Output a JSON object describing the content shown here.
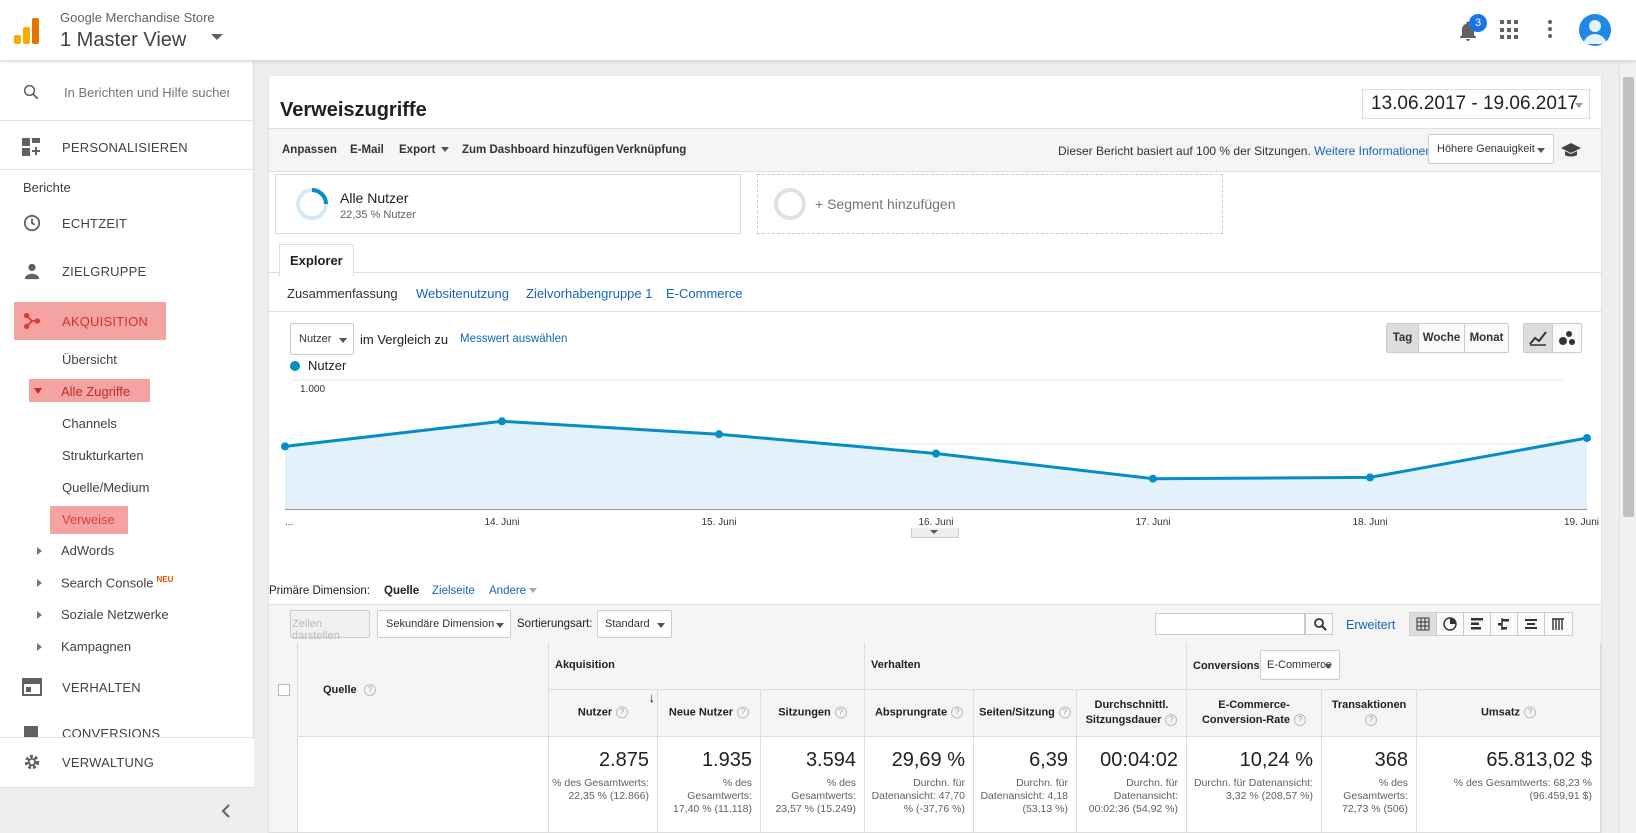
{
  "header": {
    "account": "Google Merchandise Store",
    "view": "1 Master View",
    "notification_count": "3"
  },
  "sidebar": {
    "search_placeholder": "In Berichten und Hilfe suchen",
    "personalisieren": "PERSONALISIEREN",
    "berichte": "Berichte",
    "echtzeit": "ECHTZEIT",
    "zielgruppe": "ZIELGRUPPE",
    "akquisition": "AKQUISITION",
    "uebersicht": "Übersicht",
    "alle_zugriffe": "Alle Zugriffe",
    "channels": "Channels",
    "strukturkarten": "Strukturkarten",
    "quelle_medium": "Quelle/Medium",
    "verweise": "Verweise",
    "adwords": "AdWords",
    "search_console": "Search Console",
    "neu_badge": "NEU",
    "soziale_netzwerke": "Soziale Netzwerke",
    "kampagnen": "Kampagnen",
    "verhalten": "VERHALTEN",
    "conversions": "CONVERSIONS",
    "verwaltung": "VERWALTUNG"
  },
  "report": {
    "title": "Verweiszugriffe",
    "date_range": "13.06.2017 - 19.06.2017",
    "toolbar": {
      "anpassen": "Anpassen",
      "email": "E-Mail",
      "export": "Export",
      "dashboard": "Zum Dashboard hinzufügen",
      "verknuepfung": "Verknüpfung",
      "note": "Dieser Bericht basiert auf 100 % der Sitzungen.",
      "more_info": "Weitere Informationen",
      "precision": "Höhere Genauigkeit"
    },
    "segment": {
      "name": "Alle Nutzer",
      "share": "22,35 % Nutzer",
      "add": "+ Segment hinzufügen"
    },
    "tab": "Explorer",
    "subtabs": [
      "Zusammenfassung",
      "Websitenutzung",
      "Zielvorhabengruppe 1",
      "E-Commerce"
    ],
    "metric_select": "Nutzer",
    "compare_text": "im Vergleich zu",
    "metric_link": "Messwert auswählen",
    "period_buttons": [
      "Tag",
      "Woche",
      "Monat"
    ],
    "primary_dimension_label": "Primäre Dimension:",
    "dimensions": [
      "Quelle",
      "Zielseite",
      "Andere"
    ],
    "zeilen_btn": "Zeilen darstellen",
    "secondary_dim": "Sekundäre Dimension",
    "sort_label": "Sortierungsart:",
    "sort_value": "Standard",
    "erweitert": "Erweitert"
  },
  "chart_data": {
    "type": "area",
    "legend": "Nutzer",
    "x": [
      "...",
      "14. Juni",
      "15. Juni",
      "16. Juni",
      "17. Juni",
      "18. Juni",
      "19. Juni"
    ],
    "values": [
      485,
      680,
      580,
      430,
      235,
      245,
      550
    ],
    "yticks": [
      "1.000",
      "500"
    ],
    "ylim": [
      0,
      1000
    ],
    "color": "#058dc7"
  },
  "table": {
    "quelle": "Quelle",
    "groups": [
      "Akquisition",
      "Verhalten",
      "Conversions"
    ],
    "conv_select": "E-Commerce",
    "columns": [
      {
        "label": "Nutzer",
        "value": "2.875",
        "sub": "% des Gesamtwerts: 22,35 % (12.866)"
      },
      {
        "label": "Neue Nutzer",
        "value": "1.935",
        "sub": "% des Gesamtwerts: 17,40 % (11.118)"
      },
      {
        "label": "Sitzungen",
        "value": "3.594",
        "sub": "% des Gesamtwerts: 23,57 % (15.249)"
      },
      {
        "label": "Absprungrate",
        "value": "29,69 %",
        "sub": "Durchn. für Datenansicht: 47,70 % (-37,76 %)"
      },
      {
        "label": "Seiten/Sitzung",
        "value": "6,39",
        "sub": "Durchn. für Datenansicht: 4,18 (53,13 %)"
      },
      {
        "label": "Durchschnittl. Sitzungsdauer",
        "value": "00:04:02",
        "sub": "Durchn. für Datenansicht: 00:02:36 (54,92 %)"
      },
      {
        "label": "E-Commerce-Conversion-Rate",
        "value": "10,24 %",
        "sub": "Durchn. für Datenansicht: 3,32 % (208,57 %)"
      },
      {
        "label": "Transaktionen",
        "value": "368",
        "sub": "% des Gesamtwerts: 72,73 % (506)"
      },
      {
        "label": "Umsatz",
        "value": "65.813,02 $",
        "sub": "% des Gesamtwerts: 68,23 % (96.459,91 $)"
      }
    ]
  },
  "colors": {
    "accent": "#058dc7",
    "highlight": "#f4a3a3",
    "active_red": "#e53935",
    "link": "#1565c0"
  }
}
